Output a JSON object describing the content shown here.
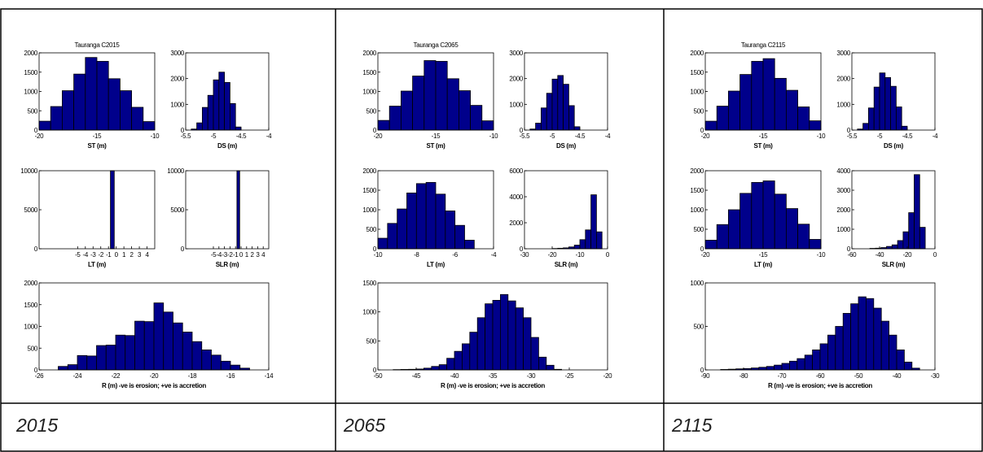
{
  "colors": {
    "bar_fill": "#00008b",
    "bar_stroke": "#000000",
    "axis": "#000000",
    "border": "#000000"
  },
  "columns": [
    {
      "caption": "2015",
      "chart_data": [
        {
          "type": "bar",
          "title": "Tauranga C2015",
          "xlabel": "ST (m)",
          "ylabel": "",
          "xlim": [
            -20,
            -10
          ],
          "ylim": [
            0,
            2000
          ],
          "xticks": [
            "-20",
            "-15",
            "-10"
          ],
          "yticks": [
            "0",
            "500",
            "1000",
            "1500",
            "2000"
          ],
          "x": [
            -19.5,
            -18.5,
            -17.5,
            -16.5,
            -15.5,
            -14.5,
            -13.5,
            -12.5,
            -11.5,
            -10.5
          ],
          "values": [
            230,
            610,
            1020,
            1450,
            1880,
            1780,
            1330,
            1020,
            590,
            220
          ]
        },
        {
          "type": "bar",
          "title": "",
          "xlabel": "DS (m)",
          "ylabel": "",
          "xlim": [
            -5.5,
            -4
          ],
          "ylim": [
            0,
            3000
          ],
          "xticks": [
            "-5.5",
            "-5",
            "-4.5",
            "-4"
          ],
          "yticks": [
            "0",
            "1000",
            "2000",
            "3000"
          ],
          "x": [
            -5.35,
            -5.25,
            -5.15,
            -5.05,
            -4.95,
            -4.85,
            -4.75,
            -4.65,
            -4.55
          ],
          "values": [
            40,
            280,
            880,
            1350,
            1950,
            2250,
            1850,
            1030,
            120
          ]
        },
        {
          "type": "bar",
          "title": "",
          "xlabel": "LT (m)",
          "ylabel": "",
          "xlim": [
            -10,
            5
          ],
          "ylim": [
            0,
            10000
          ],
          "xticks": [
            "-5",
            "-4",
            "-3",
            "-2",
            "-1",
            "0",
            "1",
            "2",
            "3",
            "4"
          ],
          "yticks": [
            "0",
            "5000",
            "10000"
          ],
          "x": [
            -0.5
          ],
          "values": [
            10000
          ]
        },
        {
          "type": "bar",
          "title": "",
          "xlabel": "SLR (m)",
          "ylabel": "",
          "xlim": [
            -10,
            5
          ],
          "ylim": [
            0,
            10000
          ],
          "xticks": [
            "-5",
            "-4",
            "-3",
            "-2",
            "-1",
            "0",
            "1",
            "2",
            "3",
            "4"
          ],
          "yticks": [
            "0",
            "5000",
            "10000"
          ],
          "x": [
            -0.5
          ],
          "values": [
            10000
          ]
        },
        {
          "type": "bar",
          "title": "",
          "xlabel": "R (m) -ve is erosion; +ve is accretion",
          "ylabel": "",
          "xlim": [
            -26,
            -14
          ],
          "ylim": [
            0,
            2000
          ],
          "xticks": [
            "-26",
            "-24",
            "-22",
            "-20",
            "-18",
            "-16",
            "-14"
          ],
          "yticks": [
            "0",
            "500",
            "1000",
            "1500",
            "2000"
          ],
          "x": [
            -24.75,
            -24.25,
            -23.75,
            -23.25,
            -22.75,
            -22.25,
            -21.75,
            -21.25,
            -20.75,
            -20.25,
            -19.75,
            -19.25,
            -18.75,
            -18.25,
            -17.75,
            -17.25,
            -16.75,
            -16.25,
            -15.75,
            -15.25
          ],
          "values": [
            80,
            120,
            330,
            320,
            560,
            570,
            800,
            790,
            1120,
            1110,
            1540,
            1330,
            1080,
            870,
            650,
            460,
            340,
            200,
            110,
            40
          ]
        }
      ]
    },
    {
      "caption": "2065",
      "chart_data": [
        {
          "type": "bar",
          "title": "Tauranga C2065",
          "xlabel": "ST (m)",
          "ylabel": "",
          "xlim": [
            -20,
            -10
          ],
          "ylim": [
            0,
            2000
          ],
          "xticks": [
            "-20",
            "-15",
            "-10"
          ],
          "yticks": [
            "0",
            "500",
            "1000",
            "1500",
            "2000"
          ],
          "x": [
            -19.5,
            -18.5,
            -17.5,
            -16.5,
            -15.5,
            -14.5,
            -13.5,
            -12.5,
            -11.5,
            -10.5
          ],
          "values": [
            250,
            620,
            1010,
            1400,
            1800,
            1780,
            1330,
            1020,
            640,
            240
          ]
        },
        {
          "type": "bar",
          "title": "",
          "xlabel": "DS (m)",
          "ylabel": "",
          "xlim": [
            -5.5,
            -4
          ],
          "ylim": [
            0,
            3000
          ],
          "xticks": [
            "-5.5",
            "-5",
            "-4.5",
            "-4"
          ],
          "yticks": [
            "0",
            "1000",
            "2000",
            "3000"
          ],
          "x": [
            -5.35,
            -5.25,
            -5.15,
            -5.05,
            -4.95,
            -4.85,
            -4.75,
            -4.65,
            -4.55
          ],
          "values": [
            40,
            270,
            860,
            1430,
            1980,
            2120,
            1780,
            950,
            130
          ]
        },
        {
          "type": "bar",
          "title": "",
          "xlabel": "LT (m)",
          "ylabel": "",
          "xlim": [
            -10,
            -4
          ],
          "ylim": [
            0,
            2000
          ],
          "xticks": [
            "-10",
            "-8",
            "-6",
            "-4"
          ],
          "yticks": [
            "0",
            "500",
            "1000",
            "1500",
            "2000"
          ],
          "x": [
            -9.75,
            -9.25,
            -8.75,
            -8.25,
            -7.75,
            -7.25,
            -6.75,
            -6.25,
            -5.75,
            -5.25
          ],
          "values": [
            270,
            650,
            1020,
            1430,
            1670,
            1700,
            1400,
            970,
            600,
            220
          ]
        },
        {
          "type": "bar",
          "title": "",
          "xlabel": "SLR (m)",
          "ylabel": "",
          "xlim": [
            -30,
            0
          ],
          "ylim": [
            0,
            6000
          ],
          "xticks": [
            "-30",
            "-20",
            "-10",
            "0"
          ],
          "yticks": [
            "0",
            "2000",
            "4000",
            "6000"
          ],
          "x": [
            -19,
            -17,
            -15,
            -13,
            -11,
            -9,
            -7,
            -5,
            -3
          ],
          "values": [
            20,
            40,
            70,
            140,
            280,
            700,
            1450,
            4150,
            1300
          ]
        },
        {
          "type": "bar",
          "title": "",
          "xlabel": "R (m) -ve is erosion; +ve is accretion",
          "ylabel": "",
          "xlim": [
            -50,
            -20
          ],
          "ylim": [
            0,
            1500
          ],
          "xticks": [
            "-50",
            "-45",
            "-40",
            "-35",
            "-30",
            "-25",
            "-20"
          ],
          "yticks": [
            "0",
            "500",
            "1000",
            "1500"
          ],
          "x": [
            -47.5,
            -46.5,
            -45.5,
            -44.5,
            -43.5,
            -42.5,
            -41.5,
            -40.5,
            -39.5,
            -38.5,
            -37.5,
            -36.5,
            -35.5,
            -34.5,
            -33.5,
            -32.5,
            -31.5,
            -30.5,
            -29.5,
            -28.5,
            -27.5,
            -26.5
          ],
          "values": [
            5,
            8,
            10,
            15,
            30,
            60,
            90,
            200,
            320,
            450,
            650,
            900,
            1140,
            1200,
            1300,
            1190,
            1070,
            900,
            560,
            220,
            80,
            10
          ]
        }
      ]
    },
    {
      "caption": "2115",
      "chart_data": [
        {
          "type": "bar",
          "title": "Tauranga C2115",
          "xlabel": "ST (m)",
          "ylabel": "",
          "xlim": [
            -20,
            -10
          ],
          "ylim": [
            0,
            2000
          ],
          "xticks": [
            "-20",
            "-15",
            "-10"
          ],
          "yticks": [
            "0",
            "500",
            "1000",
            "1500",
            "2000"
          ],
          "x": [
            -19.5,
            -18.5,
            -17.5,
            -16.5,
            -15.5,
            -14.5,
            -13.5,
            -12.5,
            -11.5,
            -10.5
          ],
          "values": [
            230,
            620,
            1010,
            1440,
            1780,
            1850,
            1340,
            1030,
            600,
            240
          ]
        },
        {
          "type": "bar",
          "title": "",
          "xlabel": "DS (m)",
          "ylabel": "",
          "xlim": [
            -5.5,
            -4
          ],
          "ylim": [
            0,
            3000
          ],
          "xticks": [
            "-5.5",
            "-5",
            "-4.5",
            "-4"
          ],
          "yticks": [
            "0",
            "1000",
            "2000",
            "3000"
          ],
          "x": [
            -5.35,
            -5.25,
            -5.15,
            -5.05,
            -4.95,
            -4.85,
            -4.75,
            -4.65,
            -4.55
          ],
          "values": [
            40,
            260,
            860,
            1670,
            2220,
            2040,
            1700,
            900,
            150
          ]
        },
        {
          "type": "bar",
          "title": "",
          "xlabel": "LT (m)",
          "ylabel": "",
          "xlim": [
            -20,
            -10
          ],
          "ylim": [
            0,
            2000
          ],
          "xticks": [
            "-20",
            "-15",
            "-10"
          ],
          "yticks": [
            "0",
            "500",
            "1000",
            "1500",
            "2000"
          ],
          "x": [
            -19.5,
            -18.5,
            -17.5,
            -16.5,
            -15.5,
            -14.5,
            -13.5,
            -12.5,
            -11.5,
            -10.5
          ],
          "values": [
            220,
            620,
            1000,
            1420,
            1700,
            1740,
            1400,
            1030,
            630,
            240
          ]
        },
        {
          "type": "bar",
          "title": "",
          "xlabel": "SLR (m)",
          "ylabel": "",
          "xlim": [
            -60,
            0
          ],
          "ylim": [
            0,
            4000
          ],
          "xticks": [
            "-60",
            "-40",
            "-20",
            "0"
          ],
          "yticks": [
            "0",
            "1000",
            "2000",
            "3000",
            "4000"
          ],
          "x": [
            -45,
            -41,
            -37,
            -33,
            -29,
            -25,
            -21,
            -17,
            -13,
            -9
          ],
          "values": [
            20,
            30,
            60,
            120,
            200,
            420,
            870,
            1850,
            3800,
            1100
          ]
        },
        {
          "type": "bar",
          "title": "",
          "xlabel": "R (m) -ve is erosion; +ve is accretion",
          "ylabel": "",
          "xlim": [
            -90,
            -30
          ],
          "ylim": [
            0,
            1000
          ],
          "xticks": [
            "-90",
            "-80",
            "-70",
            "-60",
            "-50",
            "-40",
            "-30"
          ],
          "yticks": [
            "0",
            "500",
            "1000"
          ],
          "x": [
            -85,
            -83,
            -81,
            -79,
            -77,
            -75,
            -73,
            -71,
            -69,
            -67,
            -65,
            -63,
            -61,
            -59,
            -57,
            -55,
            -53,
            -51,
            -49,
            -47,
            -45,
            -43,
            -41,
            -39,
            -37,
            -35
          ],
          "values": [
            5,
            8,
            12,
            15,
            22,
            30,
            40,
            55,
            75,
            100,
            130,
            170,
            230,
            300,
            400,
            500,
            650,
            760,
            840,
            820,
            710,
            560,
            400,
            230,
            90,
            20
          ]
        }
      ]
    }
  ]
}
